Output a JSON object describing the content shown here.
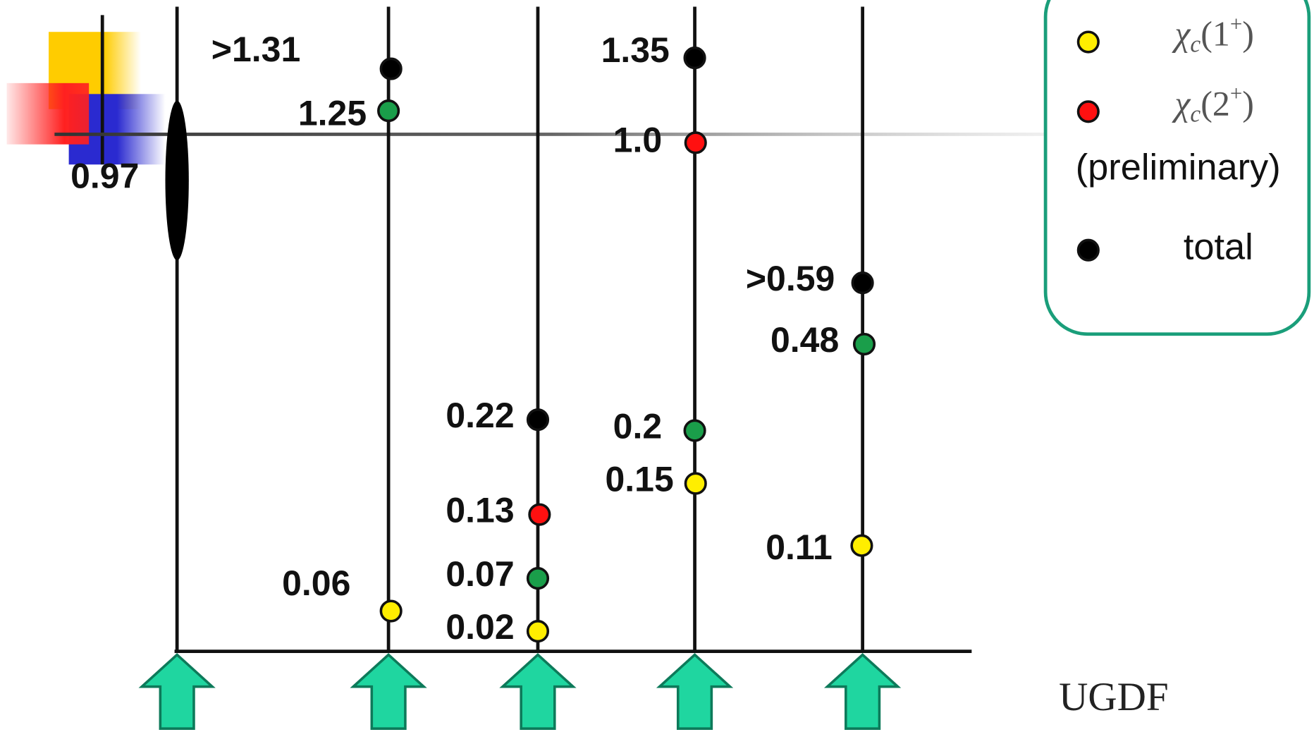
{
  "columns": [
    {
      "points": [
        {
          "label": "0.97",
          "color": "#000000"
        }
      ]
    },
    {
      "points": [
        {
          "label": ">1.31",
          "color": "#000000"
        },
        {
          "label": "1.25",
          "color": "#1a9e4a"
        },
        {
          "label": "0.06",
          "color": "#ffee00"
        }
      ]
    },
    {
      "points": [
        {
          "label": "0.22",
          "color": "#000000"
        },
        {
          "label": "0.13",
          "color": "#ff1010"
        },
        {
          "label": "0.07",
          "color": "#1a9e4a"
        },
        {
          "label": "0.02",
          "color": "#ffee00"
        }
      ]
    },
    {
      "points": [
        {
          "label": "1.35",
          "color": "#000000"
        },
        {
          "label": "1.0",
          "color": "#ff1010"
        },
        {
          "label": "0.2",
          "color": "#1a9e4a"
        },
        {
          "label": "0.15",
          "color": "#ffee00"
        }
      ]
    },
    {
      "points": [
        {
          "label": ">0.59",
          "color": "#000000"
        },
        {
          "label": "0.48",
          "color": "#1a9e4a"
        },
        {
          "label": "0.11",
          "color": "#ffee00"
        }
      ]
    }
  ],
  "axis_label": "UGDF",
  "legend": {
    "items": [
      {
        "parts": [
          "χ",
          "c",
          "(1",
          "+",
          ")"
        ],
        "color": "#ffee00"
      },
      {
        "parts": [
          "χ",
          "c",
          "(2",
          "+",
          ")"
        ],
        "color": "#ff1010"
      },
      {
        "text": "(preliminary)"
      },
      {
        "text": "total",
        "color": "#000000"
      }
    ]
  }
}
